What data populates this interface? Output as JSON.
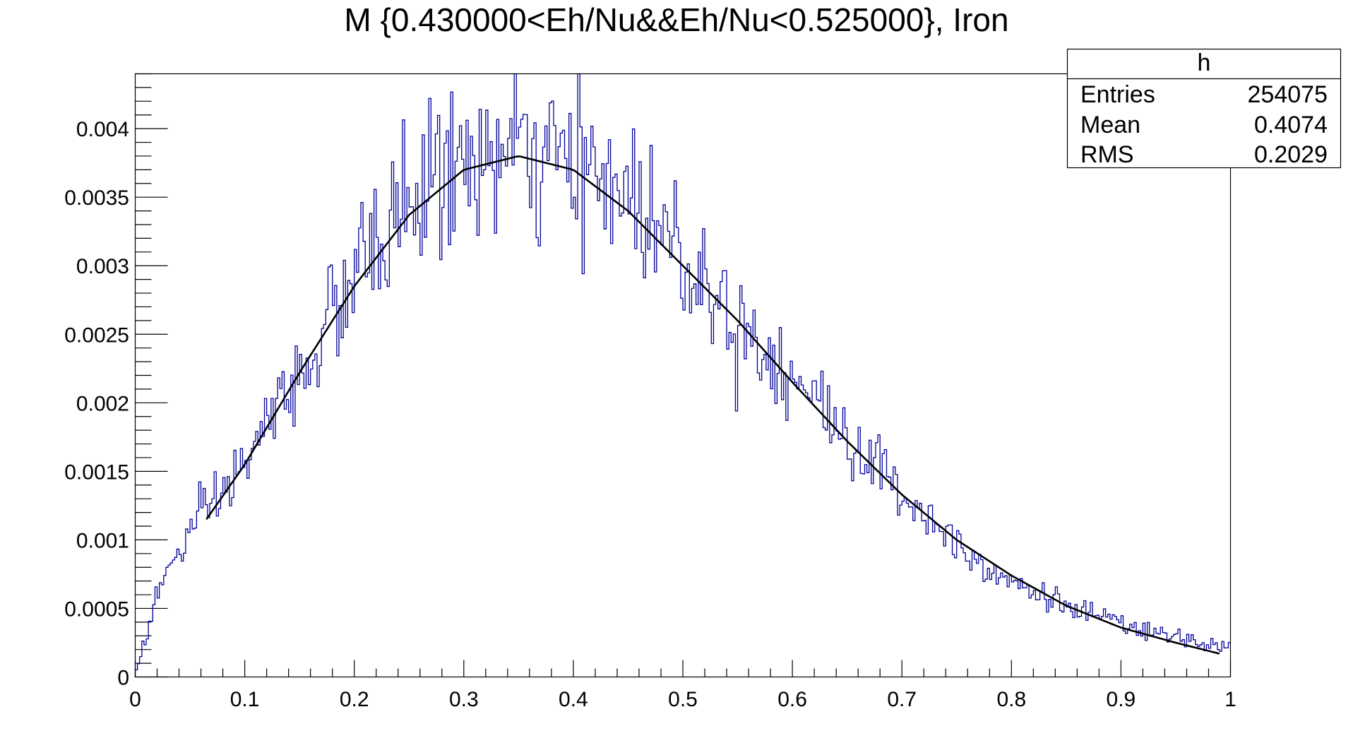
{
  "chart_data": {
    "type": "histogram",
    "title": "M {0.430000<Eh/Nu&&Eh/Nu<0.525000}, Iron",
    "xlabel": "",
    "ylabel": "",
    "xlim": [
      0,
      1
    ],
    "ylim": [
      0,
      0.0044
    ],
    "x_ticks": [
      "0",
      "0.1",
      "0.2",
      "0.3",
      "0.4",
      "0.5",
      "0.6",
      "0.7",
      "0.8",
      "0.9",
      "1"
    ],
    "y_ticks": [
      "0",
      "0.0005",
      "0.001",
      "0.0015",
      "0.002",
      "0.0025",
      "0.003",
      "0.0035",
      "0.004"
    ],
    "grid": false,
    "bins": 500,
    "stats": {
      "name": "h",
      "rows": [
        {
          "label": "Entries",
          "value": "254075"
        },
        {
          "label": "Mean",
          "value": "0.4074"
        },
        {
          "label": "RMS",
          "value": "0.2029"
        }
      ]
    },
    "histogram_color": "#000099",
    "fit_color": "#000000",
    "histogram_profile": [
      {
        "x": 0.0,
        "y": 3e-05
      },
      {
        "x": 0.01,
        "y": 0.0003
      },
      {
        "x": 0.02,
        "y": 0.0006
      },
      {
        "x": 0.03,
        "y": 0.00078
      },
      {
        "x": 0.04,
        "y": 0.00092
      },
      {
        "x": 0.05,
        "y": 0.00104
      },
      {
        "x": 0.06,
        "y": 0.00115
      },
      {
        "x": 0.08,
        "y": 0.00133
      },
      {
        "x": 0.1,
        "y": 0.00157
      },
      {
        "x": 0.12,
        "y": 0.00183
      },
      {
        "x": 0.15,
        "y": 0.0022
      },
      {
        "x": 0.2,
        "y": 0.0029
      },
      {
        "x": 0.25,
        "y": 0.0035
      },
      {
        "x": 0.3,
        "y": 0.00375
      },
      {
        "x": 0.35,
        "y": 0.0038
      },
      {
        "x": 0.4,
        "y": 0.0037
      },
      {
        "x": 0.45,
        "y": 0.00355
      },
      {
        "x": 0.5,
        "y": 0.0031
      },
      {
        "x": 0.55,
        "y": 0.0026
      },
      {
        "x": 0.6,
        "y": 0.0022
      },
      {
        "x": 0.65,
        "y": 0.00175
      },
      {
        "x": 0.7,
        "y": 0.00135
      },
      {
        "x": 0.75,
        "y": 0.00098
      },
      {
        "x": 0.8,
        "y": 0.0007
      },
      {
        "x": 0.85,
        "y": 0.00052
      },
      {
        "x": 0.9,
        "y": 0.00038
      },
      {
        "x": 0.95,
        "y": 0.00028
      },
      {
        "x": 1.0,
        "y": 0.00022
      }
    ],
    "fit_curve": {
      "x_range": [
        0.065,
        0.99
      ],
      "points": [
        {
          "x": 0.065,
          "y": 0.00115
        },
        {
          "x": 0.1,
          "y": 0.00155
        },
        {
          "x": 0.15,
          "y": 0.00222
        },
        {
          "x": 0.2,
          "y": 0.00285
        },
        {
          "x": 0.25,
          "y": 0.00337
        },
        {
          "x": 0.3,
          "y": 0.0037
        },
        {
          "x": 0.35,
          "y": 0.0038
        },
        {
          "x": 0.4,
          "y": 0.0037
        },
        {
          "x": 0.45,
          "y": 0.0034
        },
        {
          "x": 0.5,
          "y": 0.003
        },
        {
          "x": 0.55,
          "y": 0.0026
        },
        {
          "x": 0.6,
          "y": 0.00215
        },
        {
          "x": 0.65,
          "y": 0.00172
        },
        {
          "x": 0.7,
          "y": 0.00133
        },
        {
          "x": 0.75,
          "y": 0.001
        },
        {
          "x": 0.8,
          "y": 0.00074
        },
        {
          "x": 0.85,
          "y": 0.00052
        },
        {
          "x": 0.9,
          "y": 0.00036
        },
        {
          "x": 0.95,
          "y": 0.00025
        },
        {
          "x": 0.99,
          "y": 0.00017
        }
      ]
    }
  }
}
